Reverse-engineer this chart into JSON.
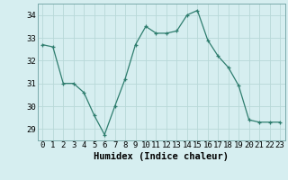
{
  "x": [
    0,
    1,
    2,
    3,
    4,
    5,
    6,
    7,
    8,
    9,
    10,
    11,
    12,
    13,
    14,
    15,
    16,
    17,
    18,
    19,
    20,
    21,
    22,
    23
  ],
  "y": [
    32.7,
    32.6,
    31.0,
    31.0,
    30.6,
    29.6,
    28.75,
    30.0,
    31.2,
    32.7,
    33.5,
    33.2,
    33.2,
    33.3,
    34.0,
    34.2,
    32.9,
    32.2,
    31.7,
    30.9,
    29.4,
    29.3,
    29.3,
    29.3
  ],
  "line_color": "#2e7d6e",
  "marker": "+",
  "bg_color": "#d6eef0",
  "grid_color": "#b8d8d8",
  "xlabel": "Humidex (Indice chaleur)",
  "ylim": [
    28.5,
    34.5
  ],
  "xlim": [
    -0.5,
    23.5
  ],
  "yticks": [
    29,
    30,
    31,
    32,
    33,
    34
  ],
  "xticks": [
    0,
    1,
    2,
    3,
    4,
    5,
    6,
    7,
    8,
    9,
    10,
    11,
    12,
    13,
    14,
    15,
    16,
    17,
    18,
    19,
    20,
    21,
    22,
    23
  ],
  "tick_fontsize": 6.5,
  "xlabel_fontsize": 7.5
}
